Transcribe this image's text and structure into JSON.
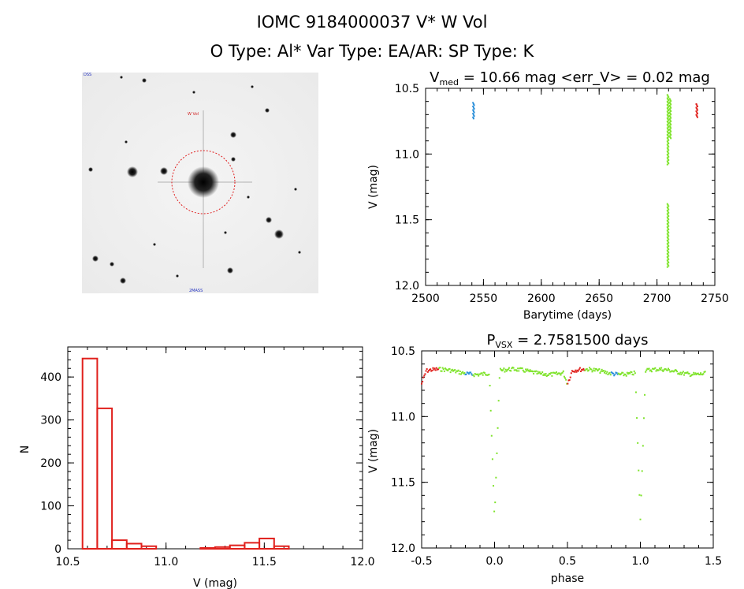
{
  "header": {
    "title_line1": "IOMC 9184000037    V* W Vol",
    "title_line2": "O Type: Al*  Var Type: EA/AR:  SP Type: K"
  },
  "colors": {
    "red": "#e0201c",
    "blue": "#2b8fd9",
    "green": "#7ee32a",
    "hist": "#d42020"
  },
  "chart_data": [
    {
      "type": "scatter",
      "panel": "light-curve",
      "title_main": "V",
      "title_sub": "med",
      "title_rest": " = 10.66 mag <err_V> = 0.02 mag",
      "xlabel": "Barytime (days)",
      "ylabel": "V (mag)",
      "xlim": [
        2500,
        2750
      ],
      "ylim": [
        12.0,
        10.5
      ],
      "y_inverted": true,
      "xticks": [
        2500,
        2550,
        2600,
        2650,
        2700,
        2750
      ],
      "yticks": [
        "10.5",
        "11.0",
        "11.5",
        "12.0"
      ],
      "series": [
        {
          "color": "blue",
          "segments": [
            {
              "x": 2541,
              "y_from": 10.61,
              "y_to": 10.73
            }
          ]
        },
        {
          "color": "green",
          "segments": [
            {
              "x": 2709,
              "y_from": 10.55,
              "y_to": 11.08
            },
            {
              "x": 2711,
              "y_from": 10.58,
              "y_to": 10.88
            },
            {
              "x": 2709,
              "y_from": 11.38,
              "y_to": 11.86
            }
          ]
        },
        {
          "color": "red",
          "segments": [
            {
              "x": 2734,
              "y_from": 10.62,
              "y_to": 10.72
            }
          ]
        }
      ]
    },
    {
      "type": "bar",
      "panel": "histogram",
      "xlabel": "V (mag)",
      "ylabel": "N",
      "xlim": [
        10.5,
        12.0
      ],
      "ylim": [
        0,
        470
      ],
      "xticks": [
        "10.5",
        "11.0",
        "11.5",
        "12.0"
      ],
      "yticks": [
        0,
        100,
        200,
        300,
        400
      ],
      "bin_start": 10.575,
      "bin_width": 0.075,
      "values": [
        443,
        327,
        20,
        12,
        6,
        0,
        0,
        0,
        2,
        4,
        8,
        14,
        24,
        6
      ]
    },
    {
      "type": "scatter",
      "panel": "phased-curve",
      "title_main": "P",
      "title_sub": "VSX",
      "title_rest": " = 2.7581500 days",
      "xlabel": "phase",
      "ylabel": "V (mag)",
      "xlim": [
        -0.5,
        1.5
      ],
      "ylim": [
        12.0,
        10.5
      ],
      "y_inverted": true,
      "xticks": [
        "-0.5",
        "0.0",
        "0.5",
        "1.0",
        "1.5"
      ],
      "yticks": [
        "10.5",
        "11.0",
        "11.5",
        "12.0"
      ],
      "period_days": 2.75815,
      "phased_points": {
        "blue_phase": [
          -0.2,
          -0.15
        ],
        "red_phase": [
          -0.5,
          -0.38
        ],
        "baseline_mag": 10.66,
        "primary_eclipse": {
          "phase": 0.0,
          "depth_mag": 11.85
        },
        "secondary_eclipse": {
          "phase": 0.5,
          "depth_mag": 10.75
        }
      }
    }
  ],
  "finder_image": {
    "label_top": "W Vol",
    "label_bottom": "2MASS",
    "label_corner": "DSS"
  }
}
